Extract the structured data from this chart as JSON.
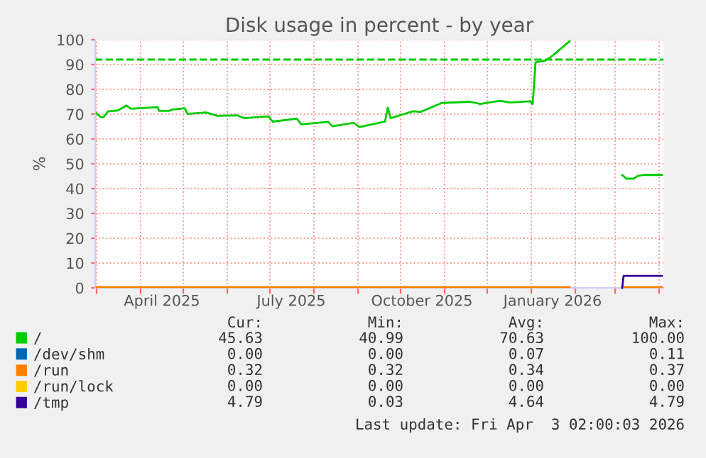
{
  "chart_data": {
    "type": "line",
    "title": "Disk usage in percent - by year",
    "ylabel": "%",
    "xlim": [
      "2025-02-28",
      "2026-04-04"
    ],
    "xticks": [
      {
        "value": "2025-03-01",
        "label": null
      },
      {
        "value": "2025-04-01",
        "label": null
      },
      {
        "value": "2025-04-16",
        "label": "April 2025"
      },
      {
        "value": "2025-05-01",
        "label": null
      },
      {
        "value": "2025-06-01",
        "label": null
      },
      {
        "value": "2025-07-01",
        "label": null
      },
      {
        "value": "2025-07-16",
        "label": "July 2025"
      },
      {
        "value": "2025-08-01",
        "label": null
      },
      {
        "value": "2025-09-01",
        "label": null
      },
      {
        "value": "2025-10-01",
        "label": null
      },
      {
        "value": "2025-10-16",
        "label": "October 2025"
      },
      {
        "value": "2025-11-01",
        "label": null
      },
      {
        "value": "2025-12-01",
        "label": null
      },
      {
        "value": "2026-01-01",
        "label": null
      },
      {
        "value": "2026-01-16",
        "label": "January 2026"
      },
      {
        "value": "2026-02-01",
        "label": null
      },
      {
        "value": "2026-03-01",
        "label": null
      },
      {
        "value": "2026-04-01",
        "label": null
      }
    ],
    "ylim": [
      0,
      100
    ],
    "yticks": [
      0,
      10,
      20,
      30,
      40,
      50,
      60,
      70,
      80,
      90,
      100
    ],
    "grid": true,
    "legend": "bottom",
    "line_style": "solid",
    "marker": "none",
    "ref_lines": [
      {
        "axis": "y",
        "value": 92,
        "color": "#00cc00",
        "line_style": "dashed"
      }
    ],
    "series": [
      {
        "name": "/",
        "color": "#00cc00",
        "x": [
          "2025-03-01",
          "2025-03-04",
          "2025-03-06",
          "2025-03-09",
          "2025-03-16",
          "2025-03-22",
          "2025-03-25",
          "2025-04-13",
          "2025-04-14",
          "2025-04-21",
          "2025-04-23",
          "2025-05-02",
          "2025-05-04",
          "2025-05-17",
          "2025-05-25",
          "2025-06-08",
          "2025-06-13",
          "2025-06-30",
          "2025-07-03",
          "2025-07-20",
          "2025-07-23",
          "2025-08-11",
          "2025-08-14",
          "2025-08-29",
          "2025-09-02",
          "2025-09-20",
          "2025-09-22",
          "2025-09-24",
          "2025-10-10",
          "2025-10-15",
          "2025-10-30",
          "2025-11-19",
          "2025-11-26",
          "2025-12-10",
          "2025-12-17",
          "2025-12-31",
          "2026-01-02",
          "2026-01-04",
          "2026-01-11",
          "2026-01-15",
          "2026-01-28",
          "2026-02-15",
          "2026-03-06",
          "2026-03-09",
          "2026-03-14",
          "2026-03-17",
          "2026-03-21",
          "2026-04-03"
        ],
        "values": [
          70.3,
          68.8,
          68.8,
          71.1,
          71.5,
          73.5,
          72.2,
          72.8,
          71.3,
          71.3,
          71.8,
          72.4,
          70.1,
          70.7,
          69.3,
          69.5,
          68.4,
          69.1,
          67.0,
          68.2,
          65.9,
          66.9,
          65.1,
          66.5,
          64.8,
          67.0,
          72.6,
          68.4,
          71.2,
          70.9,
          74.5,
          75.0,
          74.1,
          75.4,
          74.7,
          75.2,
          74.1,
          90.9,
          91.6,
          93.1,
          99.4,
          null,
          45.5,
          44.0,
          44.0,
          45.1,
          45.5,
          45.5
        ]
      },
      {
        "name": "/dev/shm",
        "color": "#0066b3"
      },
      {
        "name": "/run",
        "color": "#ff8000",
        "x": [
          "2025-03-01",
          "2026-01-28",
          "2026-02-15",
          "2026-03-06",
          "2026-04-03"
        ],
        "values": [
          0.3,
          0.3,
          null,
          0.3,
          0.3
        ]
      },
      {
        "name": "/run/lock",
        "color": "#ffcc00"
      },
      {
        "name": "/tmp",
        "color": "#330099",
        "x": [
          "2026-03-06",
          "2026-03-07",
          "2026-04-03"
        ],
        "values": [
          0,
          4.8,
          4.8
        ]
      }
    ],
    "annotations": [
      "Cur:",
      "Min:",
      "Avg:",
      "Max:",
      "45.63",
      "40.99",
      "70.63",
      "100.00",
      "0.00",
      "0.00",
      "0.07",
      "0.11",
      "0.32",
      "0.32",
      "0.34",
      "0.37",
      "0.00",
      "0.00",
      "0.00",
      "0.00",
      "4.79",
      "0.03",
      "4.64",
      "4.79",
      "Last update: Fri Apr  3 02:00:03 2026"
    ]
  }
}
